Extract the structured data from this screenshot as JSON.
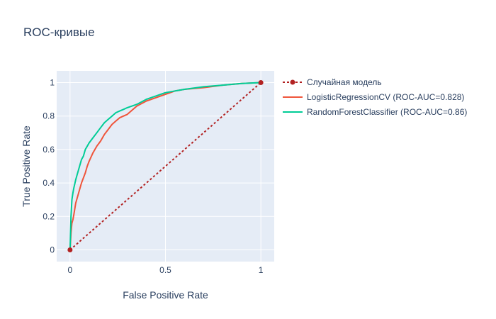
{
  "chart_data": {
    "type": "line",
    "title": "ROC-кривые",
    "xlabel": "False Positive Rate",
    "ylabel": "True Positive Rate",
    "xlim": [
      -0.07,
      1.07
    ],
    "ylim": [
      -0.07,
      1.07
    ],
    "x_ticks": [
      0,
      0.5,
      1
    ],
    "x_tick_labels": [
      "0",
      "0.5",
      "1"
    ],
    "y_ticks": [
      0,
      0.2,
      0.4,
      0.6,
      0.8,
      1
    ],
    "y_tick_labels": [
      "0",
      "0.2",
      "0.4",
      "0.6",
      "0.8",
      "1"
    ],
    "grid": true,
    "legend_position": "right",
    "plot_background": "#e5ecf6",
    "series": [
      {
        "name": "Случайная модель",
        "color": "#b22222",
        "style": "dotted",
        "markers": true,
        "x": [
          0,
          1
        ],
        "y": [
          0,
          1
        ]
      },
      {
        "name": "LogisticRegressionCV (ROC-AUC=0.828)",
        "color": "#ef553b",
        "style": "solid",
        "markers": false,
        "x": [
          0,
          0.005,
          0.01,
          0.015,
          0.02,
          0.03,
          0.04,
          0.05,
          0.06,
          0.07,
          0.08,
          0.09,
          0.1,
          0.12,
          0.14,
          0.16,
          0.18,
          0.2,
          0.22,
          0.24,
          0.26,
          0.28,
          0.3,
          0.32,
          0.35,
          0.4,
          0.45,
          0.5,
          0.55,
          0.6,
          0.7,
          0.8,
          0.9,
          1
        ],
        "y": [
          0,
          0.1,
          0.16,
          0.18,
          0.21,
          0.28,
          0.32,
          0.36,
          0.4,
          0.43,
          0.46,
          0.5,
          0.53,
          0.58,
          0.62,
          0.65,
          0.69,
          0.72,
          0.75,
          0.77,
          0.79,
          0.8,
          0.81,
          0.83,
          0.86,
          0.89,
          0.91,
          0.93,
          0.95,
          0.96,
          0.97,
          0.985,
          0.995,
          1
        ]
      },
      {
        "name": "RandomForestClassifier (ROC-AUC=0.86)",
        "color": "#00cc96",
        "style": "solid",
        "markers": false,
        "x": [
          0,
          0.005,
          0.01,
          0.015,
          0.02,
          0.03,
          0.04,
          0.05,
          0.06,
          0.07,
          0.08,
          0.09,
          0.1,
          0.12,
          0.14,
          0.16,
          0.18,
          0.2,
          0.22,
          0.24,
          0.26,
          0.28,
          0.3,
          0.35,
          0.4,
          0.45,
          0.5,
          0.55,
          0.6,
          0.7,
          0.8,
          0.9,
          1
        ],
        "y": [
          0,
          0.2,
          0.3,
          0.34,
          0.37,
          0.42,
          0.46,
          0.5,
          0.54,
          0.56,
          0.6,
          0.62,
          0.64,
          0.67,
          0.7,
          0.73,
          0.76,
          0.78,
          0.8,
          0.82,
          0.83,
          0.84,
          0.85,
          0.87,
          0.9,
          0.92,
          0.94,
          0.95,
          0.96,
          0.975,
          0.985,
          0.995,
          1
        ]
      }
    ]
  }
}
